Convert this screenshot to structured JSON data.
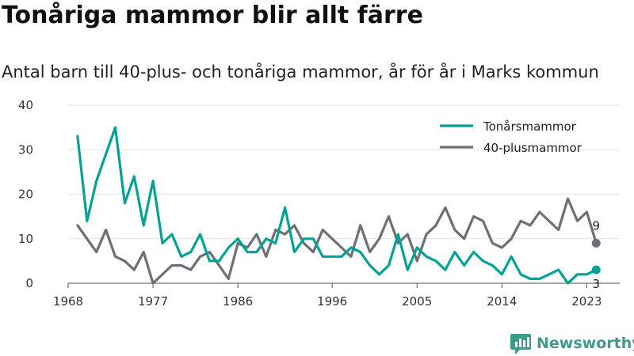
{
  "title": "Tonåriga mammor blir allt färre",
  "subtitle": "Antal barn till 40-plus- och tonåriga mammor, år för år i Marks kommun",
  "brand": "Newsworthy",
  "chart_data": {
    "type": "line",
    "title": "Tonåriga mammor blir allt färre",
    "subtitle": "Antal barn till 40-plus- och tonåriga mammor, år för år i Marks kommun",
    "xlabel": "",
    "ylabel": "",
    "xlim": [
      1968,
      2024
    ],
    "ylim": [
      0,
      40
    ],
    "x_ticks": [
      1968,
      1977,
      1986,
      1996,
      2005,
      2014,
      2023
    ],
    "y_ticks": [
      0,
      10,
      20,
      30,
      40
    ],
    "grid": true,
    "legend_position": "top-right",
    "x": [
      1969,
      1970,
      1971,
      1972,
      1973,
      1974,
      1975,
      1976,
      1977,
      1978,
      1979,
      1980,
      1981,
      1982,
      1983,
      1984,
      1985,
      1986,
      1987,
      1988,
      1989,
      1990,
      1991,
      1992,
      1993,
      1994,
      1995,
      1996,
      1997,
      1998,
      1999,
      2000,
      2001,
      2002,
      2003,
      2004,
      2005,
      2006,
      2007,
      2008,
      2009,
      2010,
      2011,
      2012,
      2013,
      2014,
      2015,
      2016,
      2017,
      2018,
      2019,
      2020,
      2021,
      2022,
      2023,
      2024
    ],
    "series": [
      {
        "name": "Tonårsmammor",
        "color": "#00a394",
        "values": [
          33,
          14,
          23,
          29,
          35,
          18,
          24,
          13,
          23,
          9,
          11,
          6,
          7,
          11,
          5,
          5,
          8,
          10,
          7,
          7,
          10,
          9,
          17,
          7,
          10,
          10,
          6,
          6,
          6,
          8,
          7,
          4,
          2,
          4,
          11,
          3,
          8,
          6,
          5,
          3,
          7,
          4,
          7,
          5,
          4,
          2,
          6,
          2,
          1,
          1,
          2,
          3,
          0,
          2,
          2,
          3
        ],
        "end_label": "3"
      },
      {
        "name": "40-plusmammor",
        "color": "#6f6f77",
        "values": [
          13,
          10,
          7,
          12,
          6,
          5,
          3,
          7,
          0,
          2,
          4,
          4,
          3,
          6,
          7,
          4,
          1,
          9,
          8,
          11,
          6,
          12,
          11,
          13,
          9,
          7,
          12,
          10,
          8,
          6,
          13,
          7,
          10,
          15,
          9,
          11,
          5,
          11,
          13,
          17,
          12,
          10,
          15,
          14,
          9,
          8,
          10,
          14,
          13,
          16,
          14,
          12,
          19,
          14,
          16,
          9
        ],
        "end_label": "9"
      }
    ]
  }
}
